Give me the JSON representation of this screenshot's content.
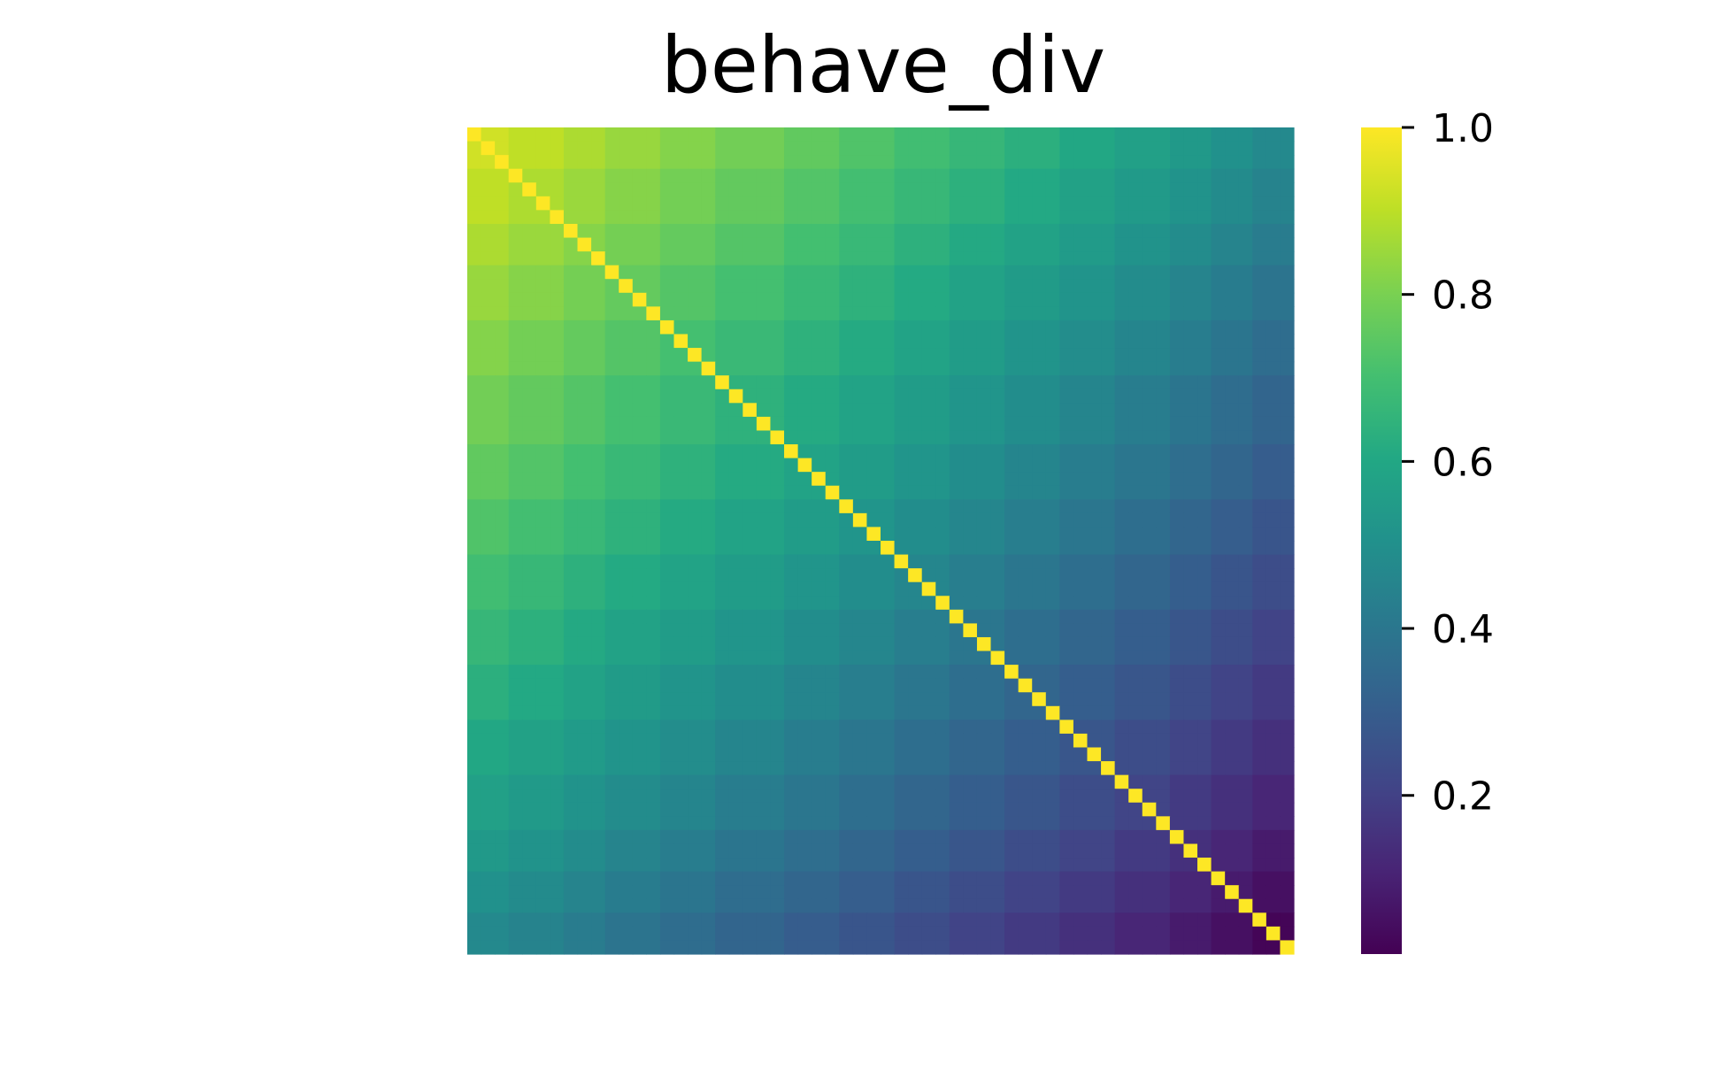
{
  "chart_data": {
    "type": "heatmap",
    "title": "behave_div",
    "xlabel": "",
    "ylabel": "",
    "colormap": "viridis",
    "n": 60,
    "value_model": {
      "description": "symmetric matrix; diagonal = 1.0; off-diagonal value = base_row(i) + base_col(j) - offset",
      "diagonal": 1.0,
      "row_profile_start": 0.93,
      "row_profile_end": 0.02,
      "group_boundaries": [
        0,
        3,
        7,
        10,
        14,
        18,
        23,
        27,
        31,
        35,
        39,
        43,
        47,
        51,
        54,
        57,
        60
      ]
    },
    "colorbar": {
      "min": 0.01,
      "max": 1.0,
      "ticks": [
        0.2,
        0.4,
        0.6,
        0.8,
        1.0
      ],
      "tick_labels": [
        "0.2",
        "0.4",
        "0.6",
        "0.8",
        "1.0"
      ]
    },
    "grid": false,
    "legend": "none"
  }
}
